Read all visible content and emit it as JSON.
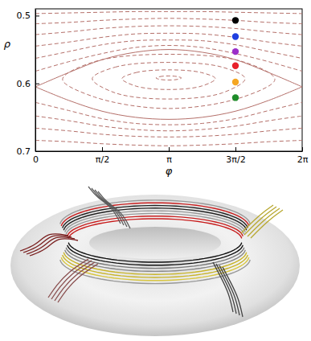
{
  "chart_data": {
    "type": "contour",
    "x_label": "φ",
    "y_label": "ρ",
    "xlim": [
      0,
      6.2832
    ],
    "ylim": [
      0.7,
      0.49
    ],
    "xticks": [
      {
        "value": 0,
        "label": "0"
      },
      {
        "value": 1.5708,
        "label": "π/2"
      },
      {
        "value": 3.1416,
        "label": "π"
      },
      {
        "value": 4.7124,
        "label": "3π/2"
      },
      {
        "value": 6.2832,
        "label": "2π"
      }
    ],
    "yticks": [
      0.5,
      0.6,
      0.7
    ],
    "series": [
      {
        "type": "line",
        "line_style": "dashed",
        "color": "#b5706a",
        "x": [
          0,
          0.785,
          1.571,
          2.356,
          3.142,
          3.927,
          4.712,
          5.498,
          6.283
        ],
        "values": [
          0.497,
          0.496,
          0.495,
          0.494,
          0.494,
          0.494,
          0.495,
          0.496,
          0.497
        ]
      },
      {
        "type": "line",
        "line_style": "dashed",
        "color": "#b5706a",
        "x": [
          0,
          0.785,
          1.571,
          2.356,
          3.142,
          3.927,
          4.712,
          5.498,
          6.283
        ],
        "values": [
          0.512,
          0.51,
          0.507,
          0.505,
          0.504,
          0.505,
          0.507,
          0.51,
          0.512
        ]
      },
      {
        "type": "line",
        "line_style": "dashed",
        "color": "#b5706a",
        "x": [
          0,
          0.785,
          1.571,
          2.356,
          3.142,
          3.927,
          4.712,
          5.498,
          6.283
        ],
        "values": [
          0.528,
          0.524,
          0.519,
          0.516,
          0.515,
          0.516,
          0.519,
          0.524,
          0.528
        ]
      },
      {
        "type": "line",
        "line_style": "dashed",
        "color": "#b5706a",
        "x": [
          0,
          0.785,
          1.571,
          2.356,
          3.142,
          3.927,
          4.712,
          5.498,
          6.283
        ],
        "values": [
          0.545,
          0.539,
          0.532,
          0.527,
          0.526,
          0.527,
          0.532,
          0.539,
          0.545
        ]
      },
      {
        "type": "line",
        "line_style": "dashed",
        "color": "#b5706a",
        "x": [
          0,
          0.785,
          1.571,
          2.356,
          3.142,
          3.927,
          4.712,
          5.498,
          6.283
        ],
        "values": [
          0.563,
          0.553,
          0.543,
          0.537,
          0.536,
          0.537,
          0.543,
          0.553,
          0.563
        ]
      },
      {
        "type": "line",
        "line_style": "dashed",
        "color": "#b5706a",
        "x": [
          0,
          0.785,
          1.571,
          2.356,
          3.142,
          3.927,
          4.712,
          5.498,
          6.283
        ],
        "values": [
          0.582,
          0.568,
          0.556,
          0.547,
          0.544,
          0.547,
          0.556,
          0.568,
          0.582
        ]
      },
      {
        "type": "line",
        "line_style": "solid",
        "color": "#b5706a",
        "x": [
          0,
          0.785,
          1.571,
          2.356,
          3.142,
          3.927,
          4.712,
          5.498,
          6.283
        ],
        "values": [
          0.605,
          0.584,
          0.565,
          0.554,
          0.55,
          0.554,
          0.565,
          0.584,
          0.605
        ]
      },
      {
        "type": "line",
        "line_style": "solid",
        "color": "#b5706a",
        "x": [
          0,
          0.785,
          1.571,
          2.356,
          3.142,
          3.927,
          4.712,
          5.498,
          6.283
        ],
        "values": [
          0.605,
          0.625,
          0.641,
          0.65,
          0.653,
          0.65,
          0.641,
          0.625,
          0.605
        ]
      },
      {
        "type": "line",
        "line_style": "dashed",
        "color": "#b5706a",
        "x": [
          0,
          0.785,
          1.571,
          2.356,
          3.142,
          3.927,
          4.712,
          5.498,
          6.283
        ],
        "values": [
          0.628,
          0.64,
          0.652,
          0.659,
          0.661,
          0.659,
          0.652,
          0.64,
          0.628
        ]
      },
      {
        "type": "line",
        "line_style": "dashed",
        "color": "#b5706a",
        "x": [
          0,
          0.785,
          1.571,
          2.356,
          3.142,
          3.927,
          4.712,
          5.498,
          6.283
        ],
        "values": [
          0.648,
          0.655,
          0.663,
          0.668,
          0.67,
          0.668,
          0.663,
          0.655,
          0.648
        ]
      },
      {
        "type": "line",
        "line_style": "dashed",
        "color": "#b5706a",
        "x": [
          0,
          0.785,
          1.571,
          2.356,
          3.142,
          3.927,
          4.712,
          5.498,
          6.283
        ],
        "values": [
          0.666,
          0.67,
          0.675,
          0.678,
          0.679,
          0.678,
          0.675,
          0.67,
          0.666
        ]
      },
      {
        "type": "line",
        "line_style": "dashed",
        "color": "#b5706a",
        "x": [
          0,
          0.785,
          1.571,
          2.356,
          3.142,
          3.927,
          4.712,
          5.498,
          6.283
        ],
        "values": [
          0.684,
          0.686,
          0.689,
          0.691,
          0.692,
          0.691,
          0.689,
          0.686,
          0.684
        ]
      },
      {
        "type": "closed",
        "line_style": "dashed",
        "color": "#b5706a",
        "x": [
          0.64,
          1.39,
          3.14,
          4.89,
          5.64,
          4.89,
          3.14,
          1.39
        ],
        "values": [
          0.594,
          0.568,
          0.557,
          0.568,
          0.594,
          0.62,
          0.637,
          0.62
        ]
      },
      {
        "type": "closed",
        "line_style": "dashed",
        "color": "#b5706a",
        "x": [
          1.34,
          1.88,
          3.14,
          4.4,
          4.94,
          4.4,
          3.14,
          1.88
        ],
        "values": [
          0.593,
          0.576,
          0.569,
          0.576,
          0.593,
          0.614,
          0.623,
          0.614
        ]
      },
      {
        "type": "closed",
        "line_style": "dashed",
        "color": "#b5706a",
        "x": [
          2.04,
          2.37,
          3.14,
          3.91,
          4.24,
          3.91,
          3.14,
          2.37
        ],
        "values": [
          0.593,
          0.584,
          0.58,
          0.584,
          0.593,
          0.604,
          0.609,
          0.604
        ]
      },
      {
        "type": "closed",
        "line_style": "dashed",
        "color": "#b5706a",
        "x": [
          2.84,
          2.93,
          3.14,
          3.35,
          3.44,
          3.35,
          3.14,
          2.93
        ],
        "values": [
          0.592,
          0.59,
          0.589,
          0.59,
          0.592,
          0.594,
          0.595,
          0.594
        ]
      },
      {
        "type": "scatter",
        "marker": "circle",
        "colors": [
          "#000000",
          "#1f3fe0",
          "#9b2fc9",
          "#e8202a",
          "#f5a623",
          "#1e8c2a"
        ],
        "x": [
          4.7124,
          4.7124,
          4.7124,
          4.7124,
          4.7124,
          4.7124
        ],
        "values": [
          0.507,
          0.531,
          0.553,
          0.574,
          0.598,
          0.621
        ]
      }
    ]
  }
}
